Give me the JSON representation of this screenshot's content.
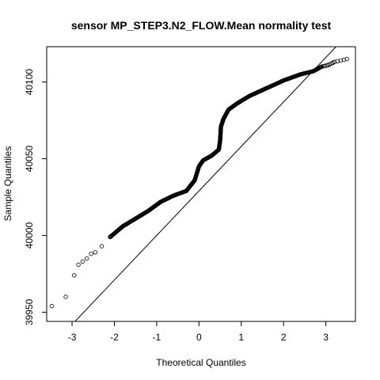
{
  "chart_data": {
    "type": "scatter",
    "title": "sensor MP_STEP3.N2_FLOW.Mean normality test",
    "xlabel": "Theoretical Quantiles",
    "ylabel": "Sample Quantiles",
    "xlim": [
      -3.6,
      3.7
    ],
    "ylim": [
      39944,
      40123
    ],
    "x_ticks": [
      -3,
      -2,
      -1,
      0,
      1,
      2,
      3
    ],
    "y_ticks": [
      39950,
      40000,
      40050,
      40100
    ],
    "grid": false,
    "legend": "none",
    "marker": "open-circle",
    "reference_line": {
      "intercept": 40029,
      "slope": 29
    },
    "qq_curve_points": [
      [
        -3.48,
        39954
      ],
      [
        -3.15,
        39960
      ],
      [
        -2.95,
        39974
      ],
      [
        -2.85,
        39981
      ],
      [
        -2.75,
        39983
      ],
      [
        -2.65,
        39985
      ],
      [
        -2.55,
        39988
      ],
      [
        -2.45,
        39989
      ],
      [
        -2.3,
        39993
      ],
      [
        -2.1,
        39999
      ],
      [
        -1.8,
        40006
      ],
      [
        -1.5,
        40011
      ],
      [
        -1.2,
        40016
      ],
      [
        -0.9,
        40022
      ],
      [
        -0.6,
        40026
      ],
      [
        -0.3,
        40029
      ],
      [
        -0.1,
        40036
      ],
      [
        0.0,
        40045
      ],
      [
        0.1,
        40049
      ],
      [
        0.3,
        40052
      ],
      [
        0.47,
        40056
      ],
      [
        0.5,
        40062
      ],
      [
        0.52,
        40071
      ],
      [
        0.58,
        40076
      ],
      [
        0.7,
        40082
      ],
      [
        0.9,
        40086
      ],
      [
        1.2,
        40091
      ],
      [
        1.6,
        40096
      ],
      [
        2.0,
        40101
      ],
      [
        2.4,
        40105
      ],
      [
        2.7,
        40107
      ],
      [
        2.9,
        40110
      ],
      [
        3.05,
        40111
      ],
      [
        3.2,
        40113
      ],
      [
        3.5,
        40115
      ]
    ]
  }
}
